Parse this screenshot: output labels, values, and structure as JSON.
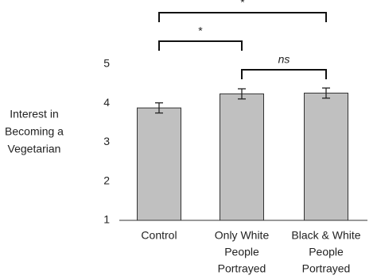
{
  "chart_data": {
    "type": "bar",
    "y_label": [
      "Interest in",
      "Becoming a",
      "Vegetarian"
    ],
    "categories": [
      [
        "Control"
      ],
      [
        "Only White",
        "People",
        "Portrayed"
      ],
      [
        "Black & White",
        "People",
        "Portrayed"
      ]
    ],
    "values": [
      3.88,
      4.24,
      4.26
    ],
    "errors": [
      0.13,
      0.13,
      0.13
    ],
    "color": "#c0c0c0",
    "ylim": [
      1,
      5
    ],
    "yticks": [
      1,
      2,
      3,
      4,
      5
    ],
    "annotations": [
      {
        "label": "*",
        "from": 0,
        "to": 2
      },
      {
        "label": "*",
        "from": 0,
        "to": 1
      },
      {
        "label": "ns",
        "from": 1,
        "to": 2,
        "italic": true
      }
    ]
  }
}
